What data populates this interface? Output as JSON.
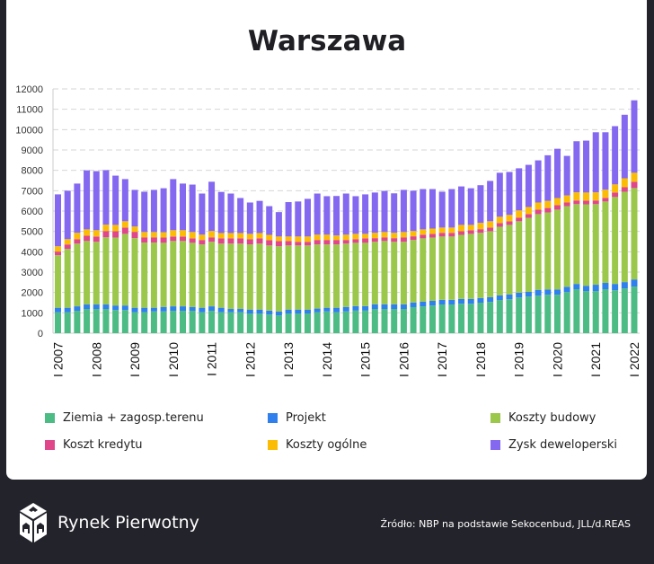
{
  "chart_data": {
    "type": "bar",
    "stacked": true,
    "title": "Warszawa",
    "xlabel": "",
    "ylabel": "",
    "ylim": [
      0,
      12000
    ],
    "yticks": [
      0,
      1000,
      2000,
      3000,
      4000,
      5000,
      6000,
      7000,
      8000,
      9000,
      10000,
      11000,
      12000
    ],
    "grid": true,
    "legend_position": "bottom",
    "categories": [
      "I 2007",
      "II 2007",
      "III 2007",
      "IV 2007",
      "I 2008",
      "II 2008",
      "III 2008",
      "IV 2008",
      "I 2009",
      "II 2009",
      "III 2009",
      "IV 2009",
      "I 2010",
      "II 2010",
      "III 2010",
      "IV 2010",
      "I 2011",
      "II 2011",
      "III 2011",
      "IV 2011",
      "I 2012",
      "II 2012",
      "III 2012",
      "IV 2012",
      "I 2013",
      "II 2013",
      "III 2013",
      "IV 2013",
      "I 2014",
      "II 2014",
      "III 2014",
      "IV 2014",
      "I 2015",
      "II 2015",
      "III 2015",
      "IV 2015",
      "I 2016",
      "II 2016",
      "III 2016",
      "IV 2016",
      "I 2017",
      "II 2017",
      "III 2017",
      "IV 2017",
      "I 2018",
      "II 2018",
      "III 2018",
      "IV 2018",
      "I 2019",
      "II 2019",
      "III 2019",
      "IV 2019",
      "I 2020",
      "II 2020",
      "III 2020",
      "IV 2020",
      "I 2021",
      "II 2021",
      "III 2021",
      "IV 2021",
      "I 2022"
    ],
    "tick_labels": [
      "I 2007",
      "I 2008",
      "I 2009",
      "I 2010",
      "I 2011",
      "I 2012",
      "I 2013",
      "I 2014",
      "I 2015",
      "I 2016",
      "I 2017",
      "I 2018",
      "I 2019",
      "I 2020",
      "I 2021",
      "I 2022"
    ],
    "series": [
      {
        "name": "Ziemia + zagosp.terenu",
        "color": "#4cbb84",
        "values": [
          1030,
          1030,
          1100,
          1190,
          1190,
          1190,
          1140,
          1140,
          1030,
          1030,
          1070,
          1070,
          1100,
          1100,
          1100,
          1030,
          1100,
          1030,
          1030,
          1030,
          970,
          970,
          920,
          880,
          970,
          970,
          970,
          1030,
          1070,
          1030,
          1070,
          1110,
          1110,
          1190,
          1190,
          1190,
          1190,
          1280,
          1320,
          1360,
          1410,
          1410,
          1450,
          1450,
          1500,
          1540,
          1630,
          1670,
          1760,
          1800,
          1850,
          1890,
          1890,
          2020,
          2160,
          2070,
          2070,
          2160,
          2110,
          2200,
          2290
        ]
      },
      {
        "name": "Projekt",
        "color": "#2f80ed",
        "values": [
          220,
          220,
          220,
          220,
          220,
          220,
          220,
          220,
          220,
          220,
          180,
          220,
          220,
          220,
          190,
          220,
          220,
          220,
          160,
          160,
          190,
          190,
          190,
          190,
          190,
          190,
          190,
          180,
          180,
          220,
          220,
          220,
          220,
          230,
          230,
          230,
          230,
          230,
          230,
          230,
          230,
          230,
          230,
          230,
          230,
          230,
          230,
          230,
          230,
          230,
          280,
          260,
          260,
          260,
          260,
          260,
          310,
          310,
          310,
          310,
          350
        ]
      },
      {
        "name": "Koszty budowy",
        "color": "#9bc74a",
        "values": [
          2580,
          2890,
          3080,
          3120,
          3080,
          3300,
          3340,
          3520,
          3420,
          3200,
          3200,
          3150,
          3210,
          3210,
          3150,
          3110,
          3170,
          3150,
          3210,
          3210,
          3200,
          3240,
          3200,
          3200,
          3150,
          3150,
          3150,
          3150,
          3110,
          3110,
          3110,
          3110,
          3110,
          3070,
          3110,
          3070,
          3070,
          3070,
          3110,
          3110,
          3110,
          3110,
          3150,
          3200,
          3200,
          3240,
          3370,
          3420,
          3510,
          3640,
          3720,
          3780,
          3920,
          3960,
          3920,
          4000,
          3960,
          4000,
          4270,
          4440,
          4490
        ]
      },
      {
        "name": "Koszt kredytu",
        "color": "#e0478a",
        "values": [
          180,
          220,
          220,
          260,
          260,
          310,
          310,
          310,
          310,
          260,
          260,
          260,
          220,
          220,
          220,
          220,
          220,
          260,
          260,
          260,
          260,
          260,
          260,
          260,
          220,
          180,
          180,
          220,
          220,
          220,
          180,
          180,
          220,
          180,
          180,
          180,
          220,
          180,
          180,
          180,
          180,
          180,
          180,
          180,
          180,
          180,
          180,
          180,
          180,
          180,
          220,
          220,
          220,
          180,
          180,
          180,
          180,
          180,
          220,
          220,
          310
        ]
      },
      {
        "name": "Koszty ogólne",
        "color": "#fbbc05",
        "values": [
          260,
          260,
          310,
          310,
          310,
          310,
          310,
          310,
          260,
          260,
          260,
          260,
          310,
          310,
          310,
          260,
          310,
          260,
          260,
          260,
          260,
          260,
          260,
          220,
          220,
          260,
          260,
          260,
          260,
          220,
          260,
          260,
          220,
          260,
          260,
          260,
          260,
          260,
          260,
          260,
          260,
          260,
          310,
          260,
          310,
          310,
          310,
          310,
          350,
          350,
          350,
          350,
          350,
          350,
          400,
          400,
          400,
          400,
          400,
          440,
          440
        ]
      },
      {
        "name": "Zysk deweloperski",
        "color": "#8468f0",
        "values": [
          2550,
          2380,
          2420,
          2900,
          2900,
          2680,
          2420,
          2070,
          1800,
          1980,
          2070,
          2160,
          2510,
          2290,
          2330,
          2020,
          2420,
          2020,
          1940,
          1720,
          1540,
          1580,
          1410,
          1200,
          1690,
          1720,
          1850,
          2020,
          1890,
          1940,
          2020,
          1850,
          1940,
          1980,
          2020,
          1940,
          2070,
          1980,
          1980,
          1940,
          1760,
          1890,
          1890,
          1800,
          1850,
          1980,
          2160,
          2110,
          2070,
          2070,
          2070,
          2240,
          2420,
          1940,
          2510,
          2550,
          2950,
          2820,
          2860,
          3120,
          3560
        ]
      }
    ]
  },
  "legend": {
    "items": [
      "Ziemia + zagosp.terenu",
      "Projekt",
      "Koszty budowy",
      "Koszt kredytu",
      "Koszty ogólne",
      "Zysk deweloperski"
    ]
  },
  "footer": {
    "brand": "Rynek Pierwotny",
    "source": "Źródło: NBP na podstawie Sekocenbud, JLL/d.REAS",
    "logo_icon": "cube-houses-icon"
  }
}
